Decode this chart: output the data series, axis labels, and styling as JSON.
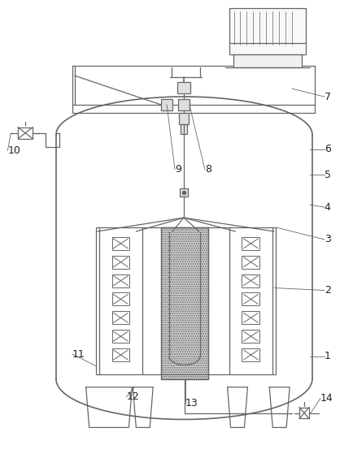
{
  "bg": "#ffffff",
  "lc": "#666666",
  "lw": 0.9,
  "lw2": 1.2,
  "fs": 9.0
}
